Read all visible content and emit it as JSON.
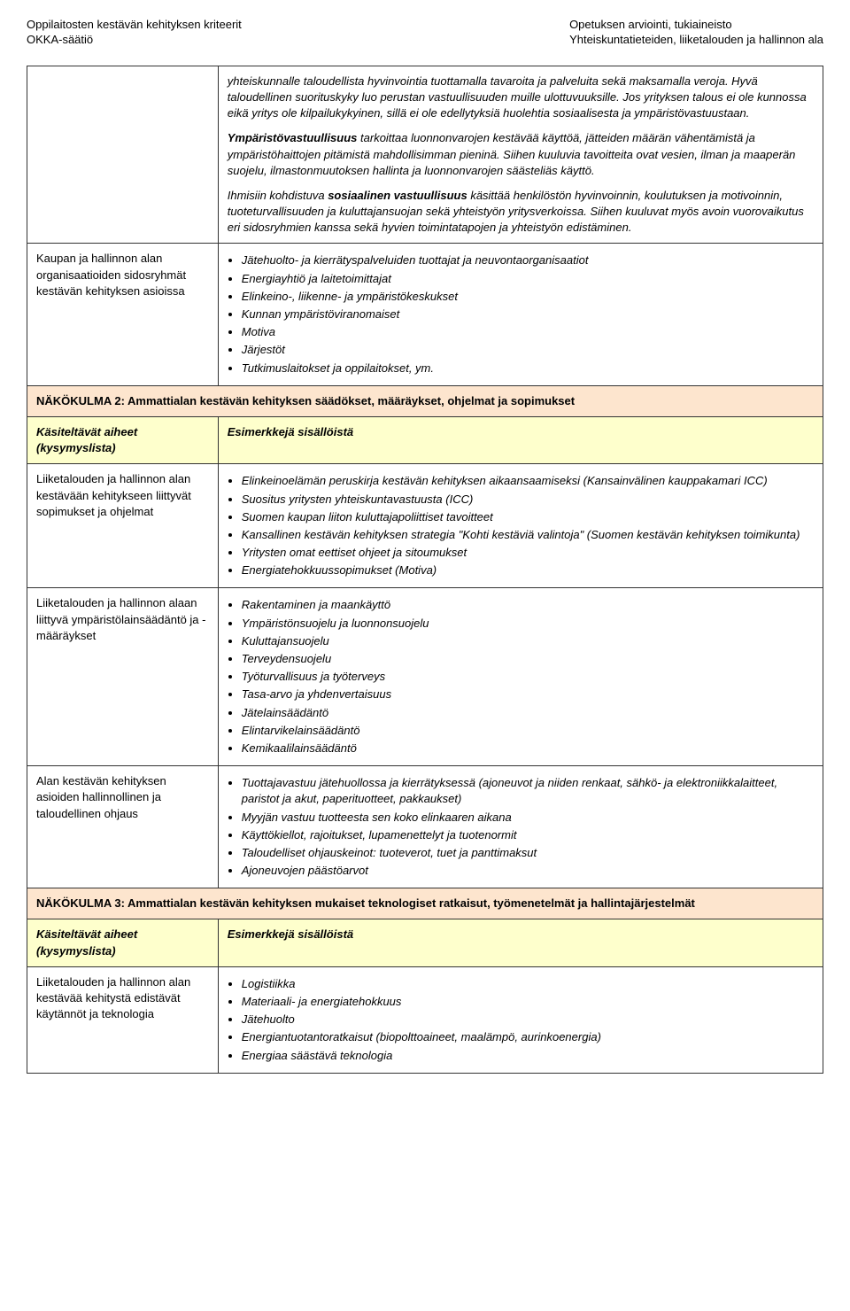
{
  "header": {
    "left_line1": "Oppilaitosten kestävän kehityksen kriteerit",
    "left_line2": "OKKA-säätiö",
    "right_line1": "Opetuksen arviointi, tukiaineisto",
    "right_line2": "Yhteiskuntatieteiden, liiketalouden ja hallinnon ala"
  },
  "intro": {
    "p1": "yhteiskunnalle taloudellista hyvinvointia tuottamalla tavaroita ja palveluita sekä maksamalla veroja. Hyvä taloudellinen suorituskyky luo perustan vastuullisuuden muille ulottuvuuksille. Jos yrityksen talous ei ole kunnossa eikä yritys ole kilpailukykyinen, sillä ei ole edellytyksiä huolehtia sosiaalisesta ja ympäristövastuustaan.",
    "p2_bold": "Ympäristövastuullisuus",
    "p2_rest": " tarkoittaa luonnonvarojen kestävää käyttöä, jätteiden määrän vähentämistä ja ympäristöhaittojen pitämistä mahdollisimman pieninä. Siihen kuuluvia tavoitteita ovat vesien, ilman ja maaperän suojelu, ilmastonmuutoksen hallinta ja luonnonvarojen säästeliäs käyttö.",
    "p3_a": "Ihmisiin kohdistuva ",
    "p3_bold": "sosiaalinen vastuullisuus",
    "p3_b": " käsittää henkilöstön hyvinvoinnin, koulutuksen ja motivoinnin, tuoteturvallisuuden ja kuluttajansuojan sekä yhteistyön yritysverkoissa. Siihen kuuluvat myös avoin vuorovaikutus eri sidosryhmien kanssa sekä hyvien toimintatapojen ja yhteistyön edistäminen."
  },
  "row1": {
    "left": "Kaupan ja hallinnon alan organisaatioiden sidosryhmät kestävän kehityksen asioissa",
    "items": [
      "Jätehuolto- ja kierrätyspalveluiden tuottajat ja neuvontaorganisaatiot",
      "Energiayhtiö ja laitetoimittajat",
      "Elinkeino-, liikenne- ja ympäristökeskukset",
      "Kunnan ympäristöviranomaiset",
      "Motiva",
      "Järjestöt",
      "Tutkimuslaitokset ja oppilaitokset, ym."
    ]
  },
  "sec2": {
    "title": "NÄKÖKULMA 2: Ammattialan kestävän kehityksen säädökset, määräykset, ohjelmat ja sopimukset",
    "col_left": "Käsiteltävät aiheet (kysymyslista)",
    "col_right": "Esimerkkejä sisällöistä"
  },
  "row2a": {
    "left": "Liiketalouden ja hallinnon alan kestävään kehitykseen liittyvät sopimukset ja ohjelmat",
    "items": [
      "Elinkeinoelämän peruskirja kestävän kehityksen aikaansaamiseksi (Kansainvälinen kauppakamari ICC)",
      "Suositus yritysten yhteiskuntavastuusta (ICC)",
      "Suomen kaupan liiton kuluttajapoliittiset tavoitteet",
      "Kansallinen kestävän kehityksen strategia \"Kohti kestäviä valintoja\" (Suomen kestävän kehityksen toimikunta)",
      "Yritysten omat eettiset ohjeet ja sitoumukset",
      "Energiatehokkuussopimukset (Motiva)"
    ]
  },
  "row2b": {
    "left": "Liiketalouden ja hallinnon alaan liittyvä ympäristölainsäädäntö ja -määräykset",
    "items": [
      "Rakentaminen ja maankäyttö",
      "Ympäristönsuojelu ja luonnonsuojelu",
      "Kuluttajansuojelu",
      "Terveydensuojelu",
      "Työturvallisuus ja työterveys",
      "Tasa-arvo ja yhdenvertaisuus",
      "Jätelainsäädäntö",
      "Elintarvikelainsäädäntö",
      "Kemikaalilainsäädäntö"
    ]
  },
  "row2c": {
    "left": "Alan kestävän kehityksen asioiden hallinnollinen ja taloudellinen ohjaus",
    "items": [
      "Tuottajavastuu jätehuollossa ja kierrätyksessä (ajoneuvot ja niiden renkaat, sähkö- ja elektroniikkalaitteet, paristot ja akut, paperituotteet, pakkaukset)",
      "Myyjän vastuu tuotteesta sen koko elinkaaren aikana",
      "Käyttökiellot, rajoitukset, lupamenettelyt ja tuotenormit",
      "Taloudelliset ohjauskeinot: tuoteverot, tuet ja panttimaksut",
      "Ajoneuvojen päästöarvot"
    ]
  },
  "sec3": {
    "title": "NÄKÖKULMA 3: Ammattialan kestävän kehityksen mukaiset teknologiset ratkaisut, työmenetelmät ja hallintajärjestelmät",
    "col_left": "Käsiteltävät aiheet (kysymyslista)",
    "col_right": "Esimerkkejä sisällöistä"
  },
  "row3a": {
    "left": "Liiketalouden ja hallinnon alan kestävää kehitystä edistävät käytännöt ja teknologia",
    "items": [
      "Logistiikka",
      "Materiaali- ja energiatehokkuus",
      "Jätehuolto",
      "Energiantuotantoratkaisut (biopolttoaineet, maalämpö, aurinkoenergia)",
      "Energiaa säästävä teknologia"
    ]
  }
}
